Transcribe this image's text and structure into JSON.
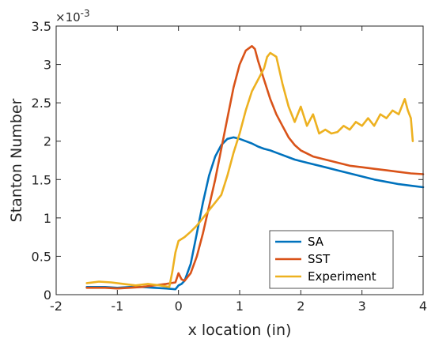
{
  "chart_data": {
    "type": "line",
    "xlabel": "x location (in)",
    "ylabel": "Stanton Number",
    "exponent_label": "×10",
    "exponent_power": "-3",
    "xlim": [
      -2,
      4
    ],
    "ylim": [
      0,
      3.5
    ],
    "xticks": [
      -2,
      -1,
      0,
      1,
      2,
      3,
      4
    ],
    "yticks": [
      0,
      0.5,
      1,
      1.5,
      2,
      2.5,
      3,
      3.5
    ],
    "xtick_labels": [
      "-2",
      "-1",
      "0",
      "1",
      "2",
      "3",
      "4"
    ],
    "ytick_labels": [
      "0",
      "0.5",
      "1",
      "1.5",
      "2",
      "2.5",
      "3",
      "3.5"
    ],
    "grid": false,
    "legend": "bottom-right",
    "series": [
      {
        "name": "SA",
        "color": "#0072BD",
        "x": [
          -1.5,
          -1.2,
          -1.0,
          -0.8,
          -0.6,
          -0.4,
          -0.2,
          -0.05,
          0.0,
          0.05,
          0.1,
          0.2,
          0.3,
          0.4,
          0.5,
          0.6,
          0.7,
          0.8,
          0.9,
          1.0,
          1.1,
          1.2,
          1.3,
          1.4,
          1.5,
          1.6,
          1.7,
          1.8,
          1.9,
          2.0,
          2.2,
          2.4,
          2.6,
          2.8,
          3.0,
          3.2,
          3.4,
          3.6,
          3.8,
          4.0
        ],
        "y": [
          0.1,
          0.1,
          0.09,
          0.1,
          0.1,
          0.09,
          0.08,
          0.07,
          0.12,
          0.14,
          0.18,
          0.4,
          0.8,
          1.2,
          1.55,
          1.8,
          1.95,
          2.03,
          2.05,
          2.03,
          2.0,
          1.97,
          1.93,
          1.9,
          1.88,
          1.85,
          1.82,
          1.79,
          1.76,
          1.74,
          1.7,
          1.66,
          1.62,
          1.58,
          1.54,
          1.5,
          1.47,
          1.44,
          1.42,
          1.4
        ]
      },
      {
        "name": "SST",
        "color": "#D95319",
        "x": [
          -1.5,
          -1.2,
          -1.0,
          -0.8,
          -0.6,
          -0.4,
          -0.2,
          -0.05,
          0.0,
          0.05,
          0.1,
          0.2,
          0.3,
          0.4,
          0.5,
          0.6,
          0.7,
          0.8,
          0.9,
          1.0,
          1.1,
          1.2,
          1.25,
          1.3,
          1.4,
          1.5,
          1.6,
          1.7,
          1.8,
          1.9,
          2.0,
          2.2,
          2.4,
          2.6,
          2.8,
          3.0,
          3.2,
          3.4,
          3.6,
          3.8,
          4.0
        ],
        "y": [
          0.09,
          0.09,
          0.08,
          0.09,
          0.1,
          0.12,
          0.14,
          0.16,
          0.28,
          0.2,
          0.18,
          0.28,
          0.5,
          0.8,
          1.15,
          1.5,
          1.9,
          2.3,
          2.7,
          3.0,
          3.18,
          3.24,
          3.2,
          3.05,
          2.8,
          2.55,
          2.35,
          2.2,
          2.05,
          1.95,
          1.88,
          1.8,
          1.76,
          1.72,
          1.68,
          1.66,
          1.64,
          1.62,
          1.6,
          1.58,
          1.57
        ]
      },
      {
        "name": "Experiment",
        "color": "#EDB120",
        "x": [
          -1.5,
          -1.3,
          -1.1,
          -0.9,
          -0.7,
          -0.5,
          -0.3,
          -0.15,
          -0.1,
          -0.05,
          0.0,
          0.1,
          0.2,
          0.3,
          0.4,
          0.5,
          0.6,
          0.7,
          0.8,
          0.9,
          1.0,
          1.1,
          1.2,
          1.3,
          1.4,
          1.45,
          1.5,
          1.6,
          1.7,
          1.8,
          1.9,
          2.0,
          2.1,
          2.2,
          2.3,
          2.4,
          2.5,
          2.6,
          2.7,
          2.8,
          2.9,
          3.0,
          3.1,
          3.2,
          3.3,
          3.4,
          3.5,
          3.6,
          3.7,
          3.75,
          3.8,
          3.83
        ],
        "y": [
          0.15,
          0.17,
          0.16,
          0.14,
          0.12,
          0.14,
          0.12,
          0.1,
          0.3,
          0.55,
          0.7,
          0.75,
          0.82,
          0.9,
          1.0,
          1.1,
          1.2,
          1.3,
          1.55,
          1.85,
          2.1,
          2.4,
          2.65,
          2.8,
          2.95,
          3.1,
          3.15,
          3.1,
          2.75,
          2.45,
          2.25,
          2.45,
          2.2,
          2.35,
          2.1,
          2.15,
          2.1,
          2.12,
          2.2,
          2.15,
          2.25,
          2.2,
          2.3,
          2.2,
          2.35,
          2.3,
          2.4,
          2.35,
          2.55,
          2.4,
          2.3,
          2.0
        ]
      }
    ]
  }
}
